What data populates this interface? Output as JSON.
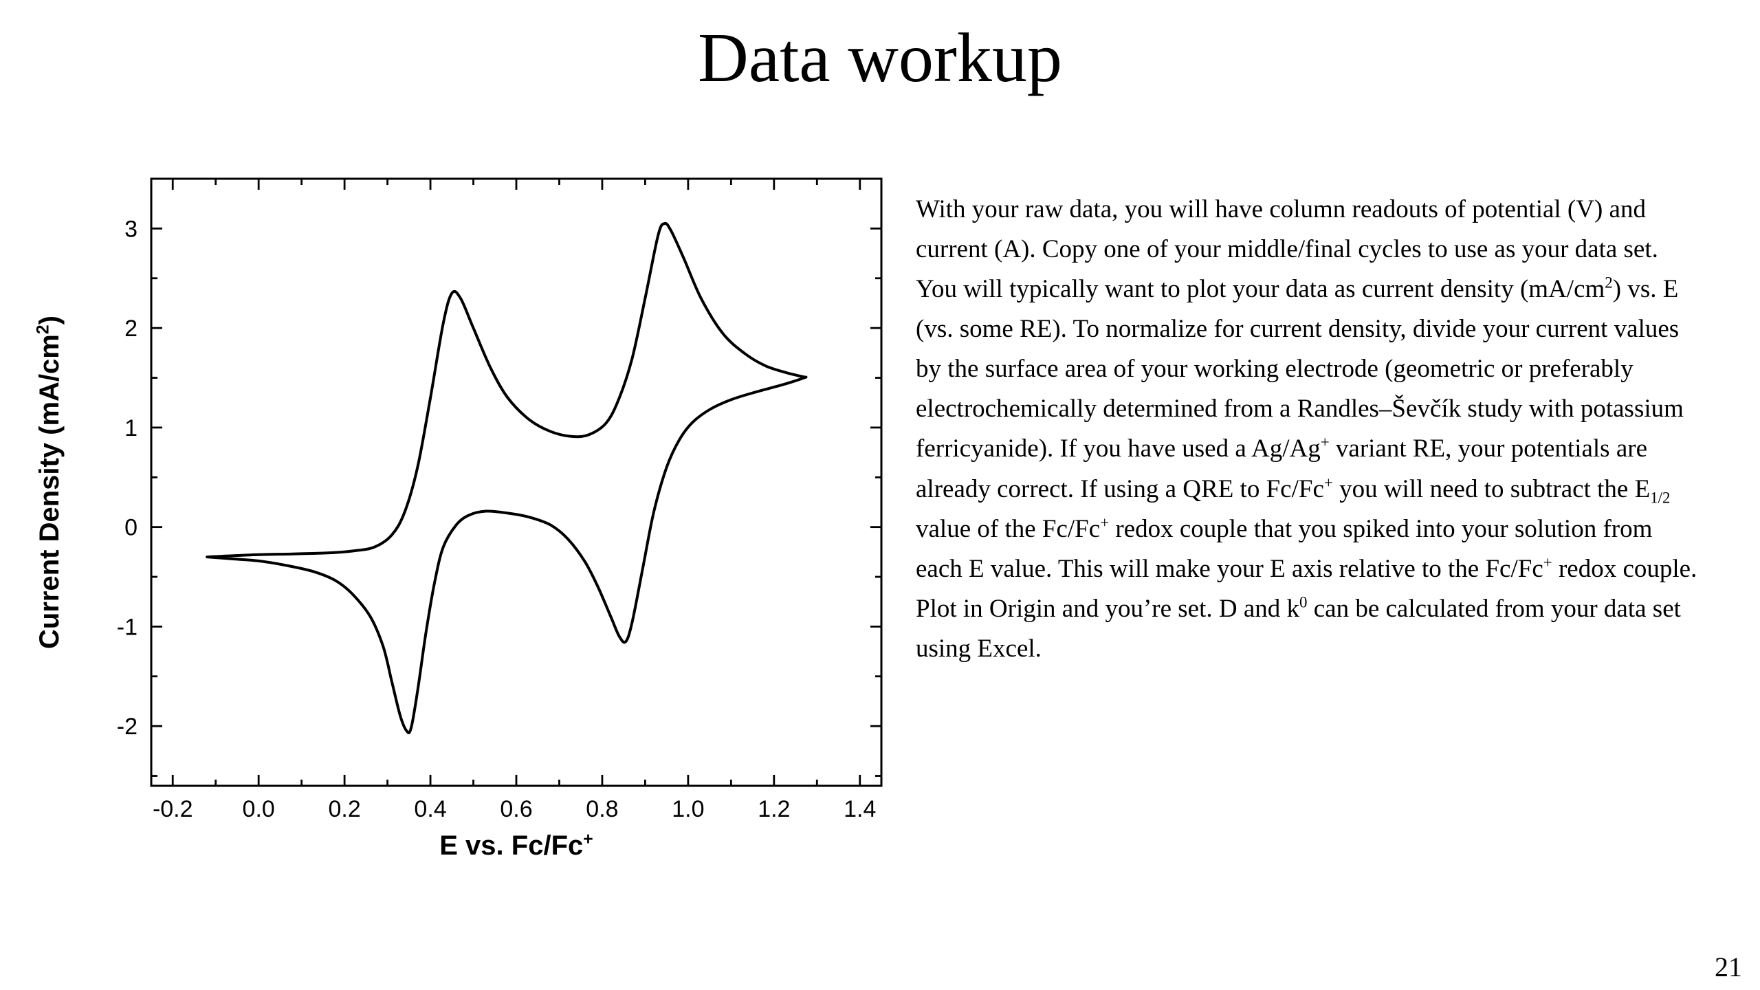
{
  "title": "Data workup",
  "page_number": "21",
  "colors": {
    "background": "#ffffff",
    "text": "#000000",
    "curve": "#000000"
  },
  "body": {
    "runs": [
      {
        "t": "With your raw data, you will have column readouts of potential (V) and current (A). Copy one of your middle/final cycles to use as your data set. You will typically want to plot your data as current density (mA/cm"
      },
      {
        "t": "2",
        "s": "sup"
      },
      {
        "t": ") vs. E (vs. some RE). To normalize for current density, divide your current values by the surface area of your working electrode (geometric or preferably electrochemically determined from a Randles–Ševčík study with potassium ferricyanide). If you have used a Ag/Ag"
      },
      {
        "t": "+",
        "s": "sup"
      },
      {
        "t": " variant RE, your potentials are already correct. If using a QRE to Fc/Fc"
      },
      {
        "t": "+",
        "s": "sup"
      },
      {
        "t": " you will need to subtract the E"
      },
      {
        "t": "1/2",
        "s": "sub"
      },
      {
        "t": " value of the Fc/Fc"
      },
      {
        "t": "+",
        "s": "sup"
      },
      {
        "t": " redox couple that you spiked into your solution from each E value. This will make your E axis relative to the Fc/Fc"
      },
      {
        "t": "+",
        "s": "sup"
      },
      {
        "t": " redox couple. Plot in Origin and you’re set. D and k"
      },
      {
        "t": "0",
        "s": "sup"
      },
      {
        "t": " can be calculated from your data set using Excel."
      }
    ]
  },
  "chart_data": {
    "type": "line",
    "title": "",
    "xlabel_runs": [
      {
        "t": "E vs. Fc/Fc"
      },
      {
        "t": "+",
        "s": "sup"
      }
    ],
    "ylabel_runs": [
      {
        "t": "Current Density (mA/cm"
      },
      {
        "t": "2",
        "s": "sup"
      },
      {
        "t": ")"
      }
    ],
    "xlim": [
      -0.25,
      1.45
    ],
    "ylim": [
      -2.6,
      3.5
    ],
    "grid": false,
    "legend": false,
    "frame": true,
    "line_color": "#000000",
    "x_ticks": {
      "values": [
        -0.2,
        0.0,
        0.2,
        0.4,
        0.6,
        0.8,
        1.0,
        1.2,
        1.4
      ],
      "labels": [
        "-0.2",
        "0.0",
        "0.2",
        "0.4",
        "0.6",
        "0.8",
        "1.0",
        "1.2",
        "1.4"
      ],
      "minor": [
        -0.1,
        0.1,
        0.3,
        0.5,
        0.7,
        0.9,
        1.1,
        1.3
      ]
    },
    "y_ticks": {
      "values": [
        -2,
        -1,
        0,
        1,
        2,
        3
      ],
      "labels": [
        "-2",
        "-1",
        "0",
        "1",
        "2",
        "3"
      ],
      "minor": [
        -2.5,
        -1.5,
        -0.5,
        0.5,
        1.5,
        2.5
      ]
    },
    "annotations": {
      "anodic_peaks": [
        {
          "E": 0.45,
          "j": 2.35
        },
        {
          "E": 0.945,
          "j": 3.05
        }
      ],
      "cathodic_peaks": [
        {
          "E": 0.355,
          "j": -2.05
        },
        {
          "E": 0.855,
          "j": -1.15
        }
      ],
      "scan_start": {
        "E": -0.12,
        "j": -0.3
      },
      "positive_vertex": {
        "E": 1.27,
        "j": 1.5
      }
    },
    "series": [
      {
        "name": "cyclic-voltammogram-cycle",
        "points": [
          [
            -0.12,
            -0.3
          ],
          [
            -0.02,
            -0.28
          ],
          [
            0.08,
            -0.27
          ],
          [
            0.16,
            -0.26
          ],
          [
            0.22,
            -0.24
          ],
          [
            0.27,
            -0.2
          ],
          [
            0.31,
            -0.08
          ],
          [
            0.34,
            0.15
          ],
          [
            0.37,
            0.6
          ],
          [
            0.4,
            1.3
          ],
          [
            0.43,
            2.05
          ],
          [
            0.45,
            2.35
          ],
          [
            0.47,
            2.3
          ],
          [
            0.5,
            2.0
          ],
          [
            0.54,
            1.6
          ],
          [
            0.58,
            1.3
          ],
          [
            0.63,
            1.08
          ],
          [
            0.68,
            0.96
          ],
          [
            0.73,
            0.91
          ],
          [
            0.77,
            0.93
          ],
          [
            0.81,
            1.05
          ],
          [
            0.84,
            1.3
          ],
          [
            0.87,
            1.7
          ],
          [
            0.9,
            2.3
          ],
          [
            0.93,
            2.93
          ],
          [
            0.945,
            3.05
          ],
          [
            0.96,
            2.98
          ],
          [
            0.99,
            2.7
          ],
          [
            1.03,
            2.3
          ],
          [
            1.08,
            1.95
          ],
          [
            1.13,
            1.75
          ],
          [
            1.18,
            1.62
          ],
          [
            1.23,
            1.55
          ],
          [
            1.268,
            1.51
          ],
          [
            1.27,
            1.5
          ],
          [
            1.22,
            1.43
          ],
          [
            1.16,
            1.36
          ],
          [
            1.1,
            1.28
          ],
          [
            1.05,
            1.18
          ],
          [
            1.01,
            1.05
          ],
          [
            0.98,
            0.88
          ],
          [
            0.95,
            0.6
          ],
          [
            0.92,
            0.15
          ],
          [
            0.895,
            -0.4
          ],
          [
            0.87,
            -0.95
          ],
          [
            0.855,
            -1.15
          ],
          [
            0.84,
            -1.1
          ],
          [
            0.82,
            -0.9
          ],
          [
            0.79,
            -0.6
          ],
          [
            0.76,
            -0.35
          ],
          [
            0.72,
            -0.12
          ],
          [
            0.68,
            0.02
          ],
          [
            0.63,
            0.1
          ],
          [
            0.58,
            0.14
          ],
          [
            0.53,
            0.16
          ],
          [
            0.49,
            0.12
          ],
          [
            0.46,
            0.02
          ],
          [
            0.43,
            -0.2
          ],
          [
            0.41,
            -0.55
          ],
          [
            0.39,
            -1.05
          ],
          [
            0.37,
            -1.65
          ],
          [
            0.355,
            -2.02
          ],
          [
            0.345,
            -2.05
          ],
          [
            0.33,
            -1.9
          ],
          [
            0.31,
            -1.55
          ],
          [
            0.29,
            -1.2
          ],
          [
            0.26,
            -0.9
          ],
          [
            0.22,
            -0.68
          ],
          [
            0.18,
            -0.54
          ],
          [
            0.13,
            -0.45
          ],
          [
            0.07,
            -0.39
          ],
          [
            0.0,
            -0.34
          ],
          [
            -0.06,
            -0.32
          ],
          [
            -0.12,
            -0.3
          ]
        ]
      }
    ]
  }
}
